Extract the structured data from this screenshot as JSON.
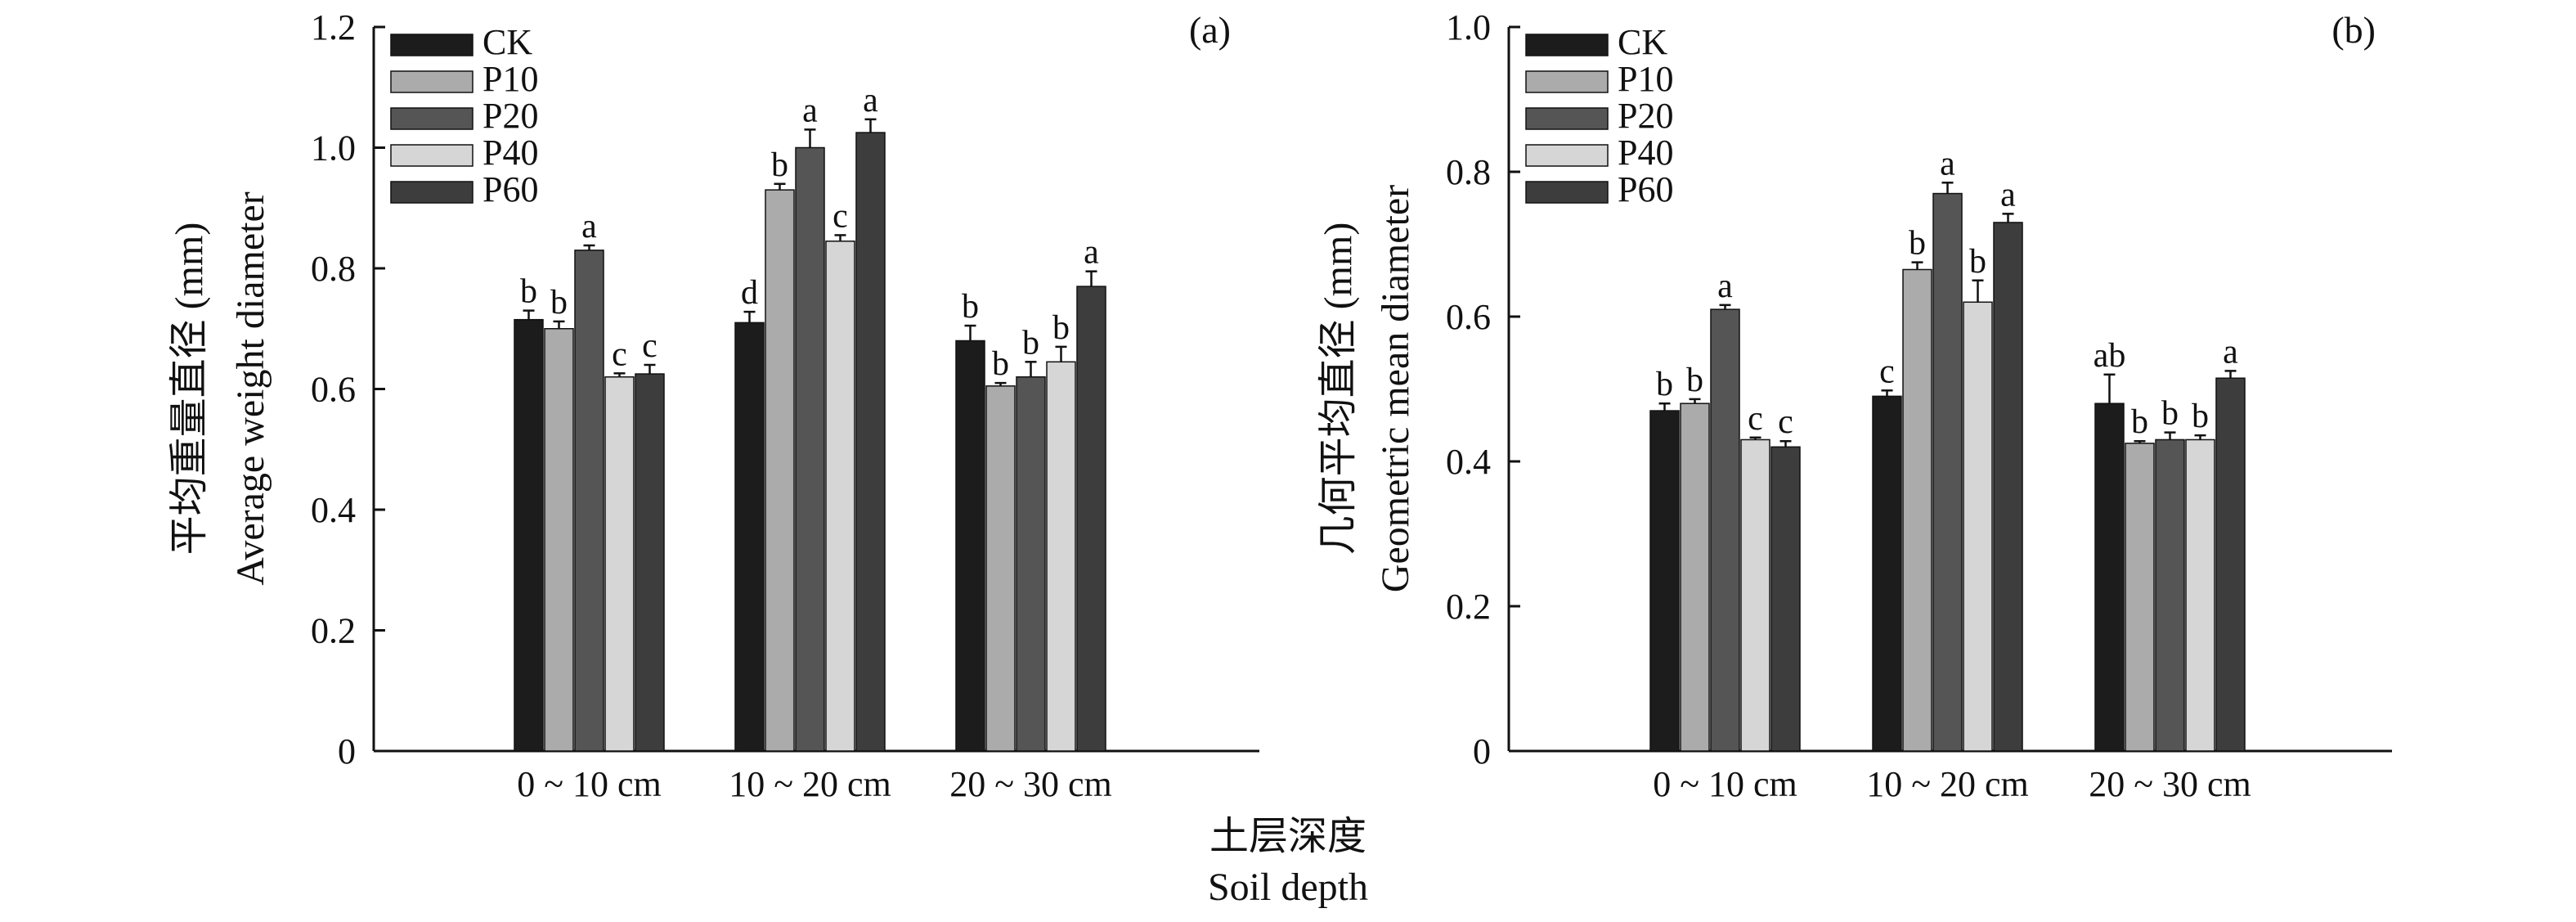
{
  "xlabel_zh": "土层深度",
  "xlabel_en": "Soil depth",
  "colors": {
    "CK": "#1c1c1c",
    "P10": "#ababab",
    "P20": "#555555",
    "P40": "#d6d6d6",
    "P60": "#3d3d3d"
  },
  "chart_data": [
    {
      "type": "bar",
      "panel": "(a)",
      "ylabel_zh": "平均重量直径 (mm)",
      "ylabel_en": "Average weight diameter",
      "ylim": [
        0,
        1.2
      ],
      "yticks": [
        "0",
        "0.2",
        "0.4",
        "0.6",
        "0.8",
        "1.0",
        "1.2"
      ],
      "categories": [
        "0 ~ 10 cm",
        "10 ~ 20 cm",
        "20 ~ 30 cm"
      ],
      "legend_position": "top-left",
      "grid": false,
      "series": [
        {
          "name": "CK",
          "values": [
            0.715,
            0.71,
            0.68
          ],
          "errors": [
            0.015,
            0.018,
            0.025
          ],
          "letters": [
            "b",
            "d",
            "b"
          ]
        },
        {
          "name": "P10",
          "values": [
            0.7,
            0.93,
            0.605
          ],
          "errors": [
            0.012,
            0.01,
            0.005
          ],
          "letters": [
            "b",
            "b",
            "b"
          ]
        },
        {
          "name": "P20",
          "values": [
            0.83,
            1.0,
            0.62
          ],
          "errors": [
            0.008,
            0.03,
            0.025
          ],
          "letters": [
            "a",
            "a",
            "b"
          ]
        },
        {
          "name": "P40",
          "values": [
            0.62,
            0.845,
            0.645
          ],
          "errors": [
            0.006,
            0.01,
            0.025
          ],
          "letters": [
            "c",
            "c",
            "b"
          ]
        },
        {
          "name": "P60",
          "values": [
            0.625,
            1.025,
            0.77
          ],
          "errors": [
            0.015,
            0.022,
            0.025
          ],
          "letters": [
            "c",
            "a",
            "a"
          ]
        }
      ]
    },
    {
      "type": "bar",
      "panel": "(b)",
      "ylabel_zh": "几何平均直径 (mm)",
      "ylabel_en": "Geometric mean diameter",
      "ylim": [
        0,
        1.0
      ],
      "yticks": [
        "0",
        "0.2",
        "0.4",
        "0.6",
        "0.8",
        "1.0"
      ],
      "categories": [
        "0 ~ 10 cm",
        "10 ~ 20 cm",
        "20 ~ 30 cm"
      ],
      "legend_position": "top-left",
      "grid": false,
      "series": [
        {
          "name": "CK",
          "values": [
            0.47,
            0.49,
            0.48
          ],
          "errors": [
            0.01,
            0.008,
            0.04
          ],
          "letters": [
            "b",
            "c",
            "ab"
          ]
        },
        {
          "name": "P10",
          "values": [
            0.48,
            0.665,
            0.425
          ],
          "errors": [
            0.006,
            0.01,
            0.003
          ],
          "letters": [
            "b",
            "b",
            "b"
          ]
        },
        {
          "name": "P20",
          "values": [
            0.61,
            0.77,
            0.43
          ],
          "errors": [
            0.006,
            0.015,
            0.01
          ],
          "letters": [
            "a",
            "a",
            "b"
          ]
        },
        {
          "name": "P40",
          "values": [
            0.43,
            0.62,
            0.43
          ],
          "errors": [
            0.003,
            0.03,
            0.006
          ],
          "letters": [
            "c",
            "b",
            "b"
          ]
        },
        {
          "name": "P60",
          "values": [
            0.42,
            0.73,
            0.515
          ],
          "errors": [
            0.008,
            0.012,
            0.01
          ],
          "letters": [
            "c",
            "a",
            "a"
          ]
        }
      ]
    }
  ]
}
